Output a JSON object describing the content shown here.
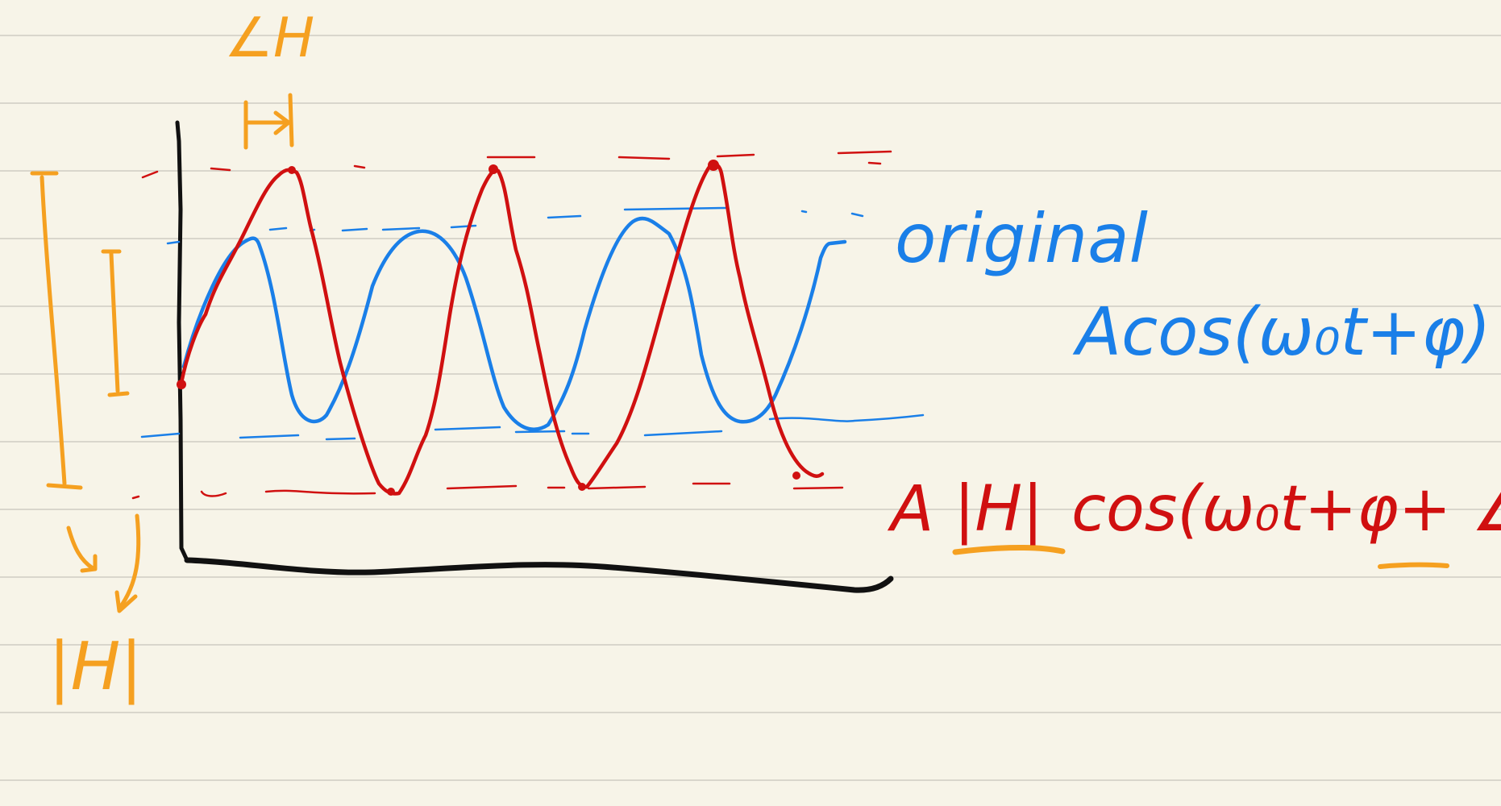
{
  "colors": {
    "paper": "#f7f4e8",
    "ruled_lines": "#d9d6cc",
    "axes": "#111111",
    "original": "#1a7fe8",
    "output": "#d01010",
    "annotation": "#f5a020"
  },
  "labels": {
    "phase_label": "∠H",
    "magnitude_label": "|H|",
    "original_word": "original",
    "original_formula": "Acos(ω₀t+φ)",
    "output_formula_prefix": "A",
    "output_formula_magnitude": "|H|",
    "output_formula_rest": "cos(ω₀t+φ+",
    "output_formula_phase": "∠H",
    "output_formula_close": ")"
  }
}
